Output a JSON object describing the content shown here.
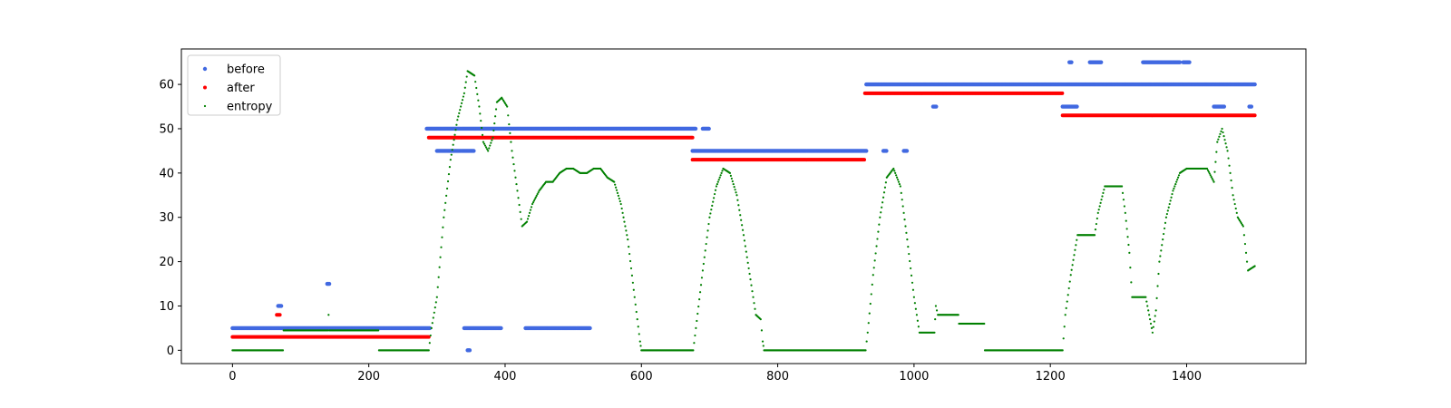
{
  "chart_data": {
    "type": "scatter",
    "xlim": [
      -75,
      1575
    ],
    "ylim": [
      -3,
      68
    ],
    "x_ticks": [
      0,
      200,
      400,
      600,
      800,
      1000,
      1200,
      1400
    ],
    "y_ticks": [
      0,
      10,
      20,
      30,
      40,
      50,
      60
    ],
    "grid": false,
    "legend_placement": "top-left",
    "series": [
      {
        "name": "before",
        "color": "#4169e1",
        "marker_size": "medium",
        "segments": [
          {
            "x": [
              0,
              290
            ],
            "y": 5
          },
          {
            "x": [
              67,
              72
            ],
            "y": 10
          },
          {
            "x": [
              139,
              142
            ],
            "y": 15
          },
          {
            "x": [
              285,
              680
            ],
            "y": 50
          },
          {
            "x": [
              300,
              355
            ],
            "y": 45
          },
          {
            "x": [
              690,
              700
            ],
            "y": 50
          },
          {
            "x": [
              675,
              930
            ],
            "y": 45
          },
          {
            "x": [
              955,
              960
            ],
            "y": 45
          },
          {
            "x": [
              985,
              990
            ],
            "y": 45
          },
          {
            "x": [
              930,
              1500
            ],
            "y": 60
          },
          {
            "x": [
              1028,
              1033
            ],
            "y": 55
          },
          {
            "x": [
              1218,
              1240
            ],
            "y": 55
          },
          {
            "x": [
              1440,
              1455
            ],
            "y": 55
          },
          {
            "x": [
              1492,
              1496
            ],
            "y": 55
          },
          {
            "x": [
              1228,
              1232
            ],
            "y": 65
          },
          {
            "x": [
              1258,
              1275
            ],
            "y": 65
          },
          {
            "x": [
              1336,
              1390
            ],
            "y": 65
          },
          {
            "x": [
              1395,
              1405
            ],
            "y": 65
          },
          {
            "x": [
              340,
              395
            ],
            "y": 5
          },
          {
            "x": [
              430,
              525
            ],
            "y": 5
          },
          {
            "x": [
              345,
              348
            ],
            "y": 0
          }
        ]
      },
      {
        "name": "after",
        "color": "#ff0000",
        "marker_size": "small",
        "segments": [
          {
            "x": [
              0,
              288
            ],
            "y": 3
          },
          {
            "x": [
              65,
              70
            ],
            "y": 8
          },
          {
            "x": [
              288,
              675
            ],
            "y": 48
          },
          {
            "x": [
              675,
              928
            ],
            "y": 43
          },
          {
            "x": [
              928,
              1218
            ],
            "y": 58
          },
          {
            "x": [
              1218,
              1500
            ],
            "y": 53
          }
        ]
      },
      {
        "name": "entropy",
        "color": "#008000",
        "marker_size": "tiny",
        "points": [
          [
            0,
            0
          ],
          [
            74,
            0
          ],
          [
            75,
            4.5
          ],
          [
            140,
            4.5
          ],
          [
            141,
            8
          ],
          [
            142,
            4.5
          ],
          [
            214,
            4.5
          ],
          [
            215,
            0
          ],
          [
            288,
            0
          ],
          [
            292,
            5
          ],
          [
            300,
            12
          ],
          [
            310,
            30
          ],
          [
            320,
            43
          ],
          [
            330,
            52
          ],
          [
            340,
            58
          ],
          [
            345,
            63
          ],
          [
            355,
            62
          ],
          [
            362,
            55
          ],
          [
            368,
            47
          ],
          [
            375,
            45
          ],
          [
            382,
            48
          ],
          [
            388,
            56
          ],
          [
            395,
            57
          ],
          [
            403,
            55
          ],
          [
            410,
            45
          ],
          [
            418,
            36
          ],
          [
            425,
            28
          ],
          [
            432,
            29
          ],
          [
            440,
            33
          ],
          [
            450,
            36
          ],
          [
            460,
            38
          ],
          [
            470,
            38
          ],
          [
            480,
            40
          ],
          [
            490,
            41
          ],
          [
            500,
            41
          ],
          [
            510,
            40
          ],
          [
            520,
            40
          ],
          [
            530,
            41
          ],
          [
            540,
            41
          ],
          [
            550,
            39
          ],
          [
            560,
            38
          ],
          [
            570,
            33
          ],
          [
            580,
            25
          ],
          [
            590,
            12
          ],
          [
            598,
            2
          ],
          [
            600,
            0
          ],
          [
            676,
            0
          ],
          [
            680,
            5
          ],
          [
            690,
            18
          ],
          [
            700,
            30
          ],
          [
            710,
            37
          ],
          [
            720,
            41
          ],
          [
            730,
            40
          ],
          [
            740,
            35
          ],
          [
            750,
            26
          ],
          [
            760,
            16
          ],
          [
            768,
            8
          ],
          [
            775,
            7
          ],
          [
            778,
            2
          ],
          [
            780,
            0
          ],
          [
            929,
            0
          ],
          [
            932,
            4
          ],
          [
            940,
            17
          ],
          [
            950,
            30
          ],
          [
            960,
            39
          ],
          [
            970,
            41
          ],
          [
            980,
            37
          ],
          [
            990,
            25
          ],
          [
            1000,
            12
          ],
          [
            1008,
            4
          ],
          [
            1030,
            4
          ],
          [
            1032,
            10
          ],
          [
            1035,
            8
          ],
          [
            1065,
            8
          ],
          [
            1066,
            6
          ],
          [
            1103,
            6
          ],
          [
            1104,
            0
          ],
          [
            1218,
            0
          ],
          [
            1222,
            8
          ],
          [
            1230,
            17
          ],
          [
            1240,
            26
          ],
          [
            1265,
            26
          ],
          [
            1270,
            31
          ],
          [
            1275,
            34
          ],
          [
            1280,
            37
          ],
          [
            1305,
            37
          ],
          [
            1310,
            31
          ],
          [
            1316,
            22
          ],
          [
            1320,
            12
          ],
          [
            1340,
            12
          ],
          [
            1345,
            8
          ],
          [
            1350,
            4
          ],
          [
            1355,
            9
          ],
          [
            1360,
            20
          ],
          [
            1370,
            30
          ],
          [
            1380,
            36
          ],
          [
            1390,
            40
          ],
          [
            1400,
            41
          ],
          [
            1430,
            41
          ],
          [
            1440,
            38
          ],
          [
            1445,
            47
          ],
          [
            1452,
            50
          ],
          [
            1460,
            45
          ],
          [
            1468,
            35
          ],
          [
            1475,
            30
          ],
          [
            1483,
            28
          ],
          [
            1490,
            18
          ],
          [
            1500,
            19
          ]
        ]
      }
    ]
  }
}
